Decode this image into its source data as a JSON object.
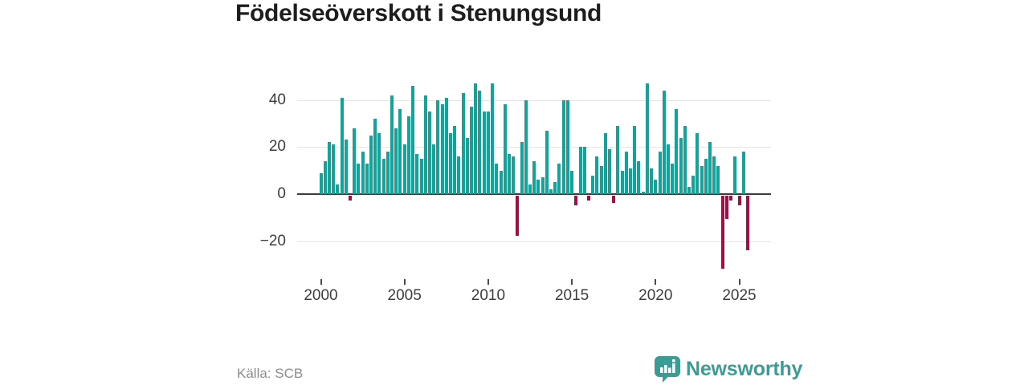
{
  "title": "Födelseöverskott i Stenungsund",
  "source": "Källa: SCB",
  "brand": {
    "name": "Newsworthy",
    "color": "#3b9c96"
  },
  "colors": {
    "positive": "#12a39b",
    "negative": "#a30e45",
    "gridline": "#e4e4e4",
    "zero_line": "#3c3c3c",
    "axis_text": "#3d3d3d"
  },
  "chart_data": {
    "type": "bar",
    "title": "Födelseöverskott i Stenungsund",
    "frequency": "quarterly",
    "start": "2000-Q1",
    "end": "2025-Q3",
    "x_ticks": [
      2000,
      2005,
      2010,
      2015,
      2020,
      2025
    ],
    "y_ticks": [
      40,
      20,
      0,
      -20
    ],
    "ylim": [
      -33,
      50
    ],
    "grid": "horizontal",
    "legend": "none",
    "xlabel": "",
    "ylabel": "",
    "values": [
      9,
      14,
      22,
      21,
      4,
      41,
      23,
      -2,
      28,
      13,
      18,
      13,
      25,
      32,
      26,
      15,
      18,
      42,
      28,
      36,
      21,
      33,
      46,
      17,
      15,
      42,
      35,
      21,
      40,
      38,
      41,
      26,
      29,
      16,
      43,
      24,
      37,
      47,
      44,
      35,
      35,
      47,
      13,
      10,
      38,
      17,
      16,
      -17,
      22,
      40,
      4,
      14,
      6,
      7,
      27,
      2,
      5,
      13,
      40,
      40,
      10,
      -4,
      20,
      20,
      -2,
      8,
      16,
      12,
      26,
      19,
      -3,
      29,
      10,
      18,
      11,
      29,
      14,
      1,
      47,
      11,
      6,
      18,
      44,
      21,
      13,
      36,
      24,
      29,
      3,
      8,
      26,
      12,
      15,
      22,
      16,
      12,
      -31,
      -10,
      -2,
      16,
      -4,
      18,
      -23
    ]
  }
}
